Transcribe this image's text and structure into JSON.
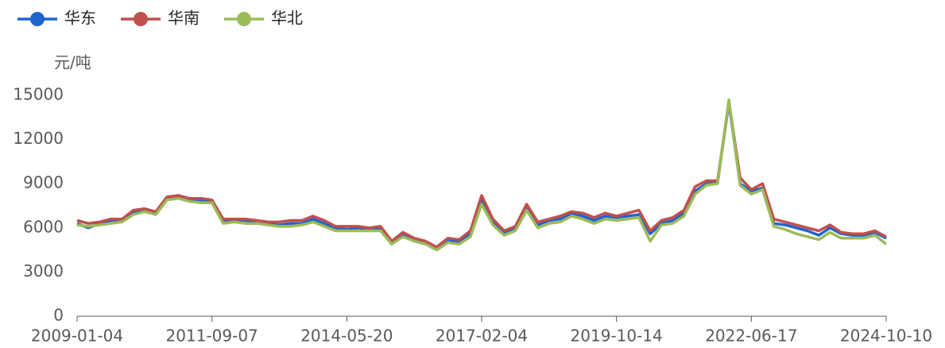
{
  "chart_data": {
    "type": "line",
    "y_axis_label": "元/吨",
    "categories": [
      "2009-01-04",
      null,
      null,
      null,
      null,
      null,
      null,
      null,
      null,
      null,
      null,
      null,
      "2011-09-07",
      null,
      null,
      null,
      null,
      null,
      null,
      null,
      null,
      null,
      null,
      null,
      "2014-05-20",
      null,
      null,
      null,
      null,
      null,
      null,
      null,
      null,
      null,
      null,
      null,
      "2017-02-04",
      null,
      null,
      null,
      null,
      null,
      null,
      null,
      null,
      null,
      null,
      null,
      "2019-10-14",
      null,
      null,
      null,
      null,
      null,
      null,
      null,
      null,
      null,
      null,
      null,
      "2022-06-17",
      null,
      null,
      null,
      null,
      null,
      null,
      null,
      null,
      null,
      null,
      null,
      "2024-10-10"
    ],
    "series": [
      {
        "name": "华东",
        "color": "#1f63cf",
        "values": [
          6300,
          6000,
          6300,
          6500,
          6500,
          7100,
          7200,
          7000,
          8000,
          8100,
          7900,
          7900,
          7800,
          6500,
          6500,
          6500,
          6300,
          6300,
          6200,
          6300,
          6300,
          6600,
          6300,
          6000,
          5900,
          6000,
          5900,
          6000,
          5000,
          5500,
          5200,
          5000,
          4600,
          5200,
          5000,
          5600,
          7900,
          6400,
          5700,
          6000,
          7300,
          6200,
          6500,
          6600,
          7000,
          6800,
          6500,
          6800,
          6700,
          6800,
          6900,
          5600,
          6300,
          6500,
          7000,
          8500,
          9000,
          9100,
          14500,
          9000,
          8500,
          8700,
          6300,
          6200,
          6000,
          5800,
          5500,
          6000,
          5600,
          5500,
          5500,
          5700,
          5300
        ]
      },
      {
        "name": "华南",
        "color": "#c0504d",
        "values": [
          6500,
          6300,
          6400,
          6600,
          6600,
          7200,
          7300,
          7100,
          8100,
          8200,
          8000,
          8000,
          7900,
          6600,
          6600,
          6600,
          6500,
          6400,
          6400,
          6500,
          6500,
          6800,
          6500,
          6100,
          6100,
          6100,
          6000,
          6100,
          5100,
          5700,
          5300,
          5100,
          4700,
          5300,
          5200,
          5800,
          8200,
          6600,
          5800,
          6100,
          7600,
          6400,
          6600,
          6800,
          7100,
          7000,
          6700,
          7000,
          6800,
          7000,
          7200,
          5800,
          6500,
          6700,
          7200,
          8800,
          9200,
          9200,
          14600,
          9400,
          8600,
          9000,
          6600,
          6400,
          6200,
          6000,
          5800,
          6200,
          5700,
          5600,
          5600,
          5800,
          5400
        ]
      },
      {
        "name": "华北",
        "color": "#9bbb59",
        "values": [
          6200,
          6100,
          6200,
          6300,
          6400,
          6900,
          7100,
          6900,
          7900,
          8000,
          7800,
          7700,
          7700,
          6300,
          6400,
          6300,
          6300,
          6200,
          6100,
          6100,
          6200,
          6400,
          6100,
          5800,
          5800,
          5800,
          5800,
          5800,
          4900,
          5400,
          5100,
          4900,
          4500,
          5000,
          4900,
          5400,
          7600,
          6200,
          5500,
          5800,
          7200,
          6000,
          6300,
          6400,
          6800,
          6600,
          6300,
          6600,
          6500,
          6600,
          6700,
          5100,
          6200,
          6300,
          6800,
          8300,
          8900,
          9000,
          14700,
          8900,
          8300,
          8600,
          6100,
          5900,
          5600,
          5400,
          5200,
          5700,
          5300,
          5300,
          5300,
          5500,
          4900
        ]
      }
    ],
    "ylim": [
      0,
      15000
    ],
    "yticks": [
      0,
      3000,
      6000,
      9000,
      12000,
      15000
    ],
    "grid": false,
    "legend": "top-left"
  }
}
